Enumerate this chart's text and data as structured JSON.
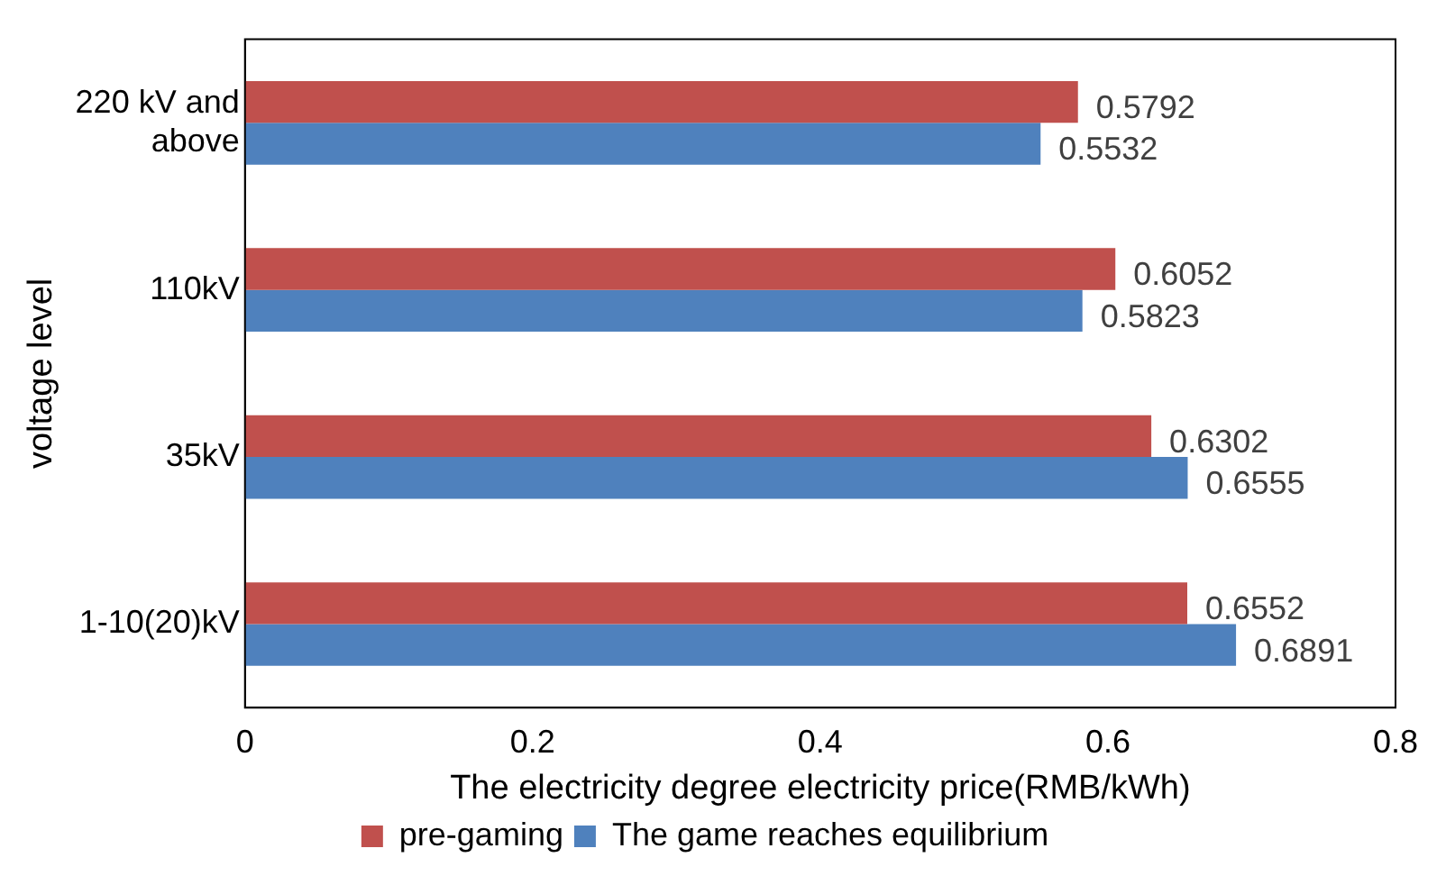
{
  "chart_data": {
    "type": "bar",
    "orientation": "horizontal",
    "xlabel": "The electricity degree electricity price(RMB/kWh)",
    "ylabel": "voltage level",
    "categories": [
      "220 kV and above",
      "110kV",
      "35kV",
      "1-10(20)kV"
    ],
    "series": [
      {
        "name": "pre-gaming",
        "color": "#c0504d",
        "values": [
          0.5792,
          0.6052,
          0.6302,
          0.6552
        ]
      },
      {
        "name": "The game reaches equilibrium",
        "color": "#4f81bd",
        "values": [
          0.5532,
          0.5823,
          0.6555,
          0.6891
        ]
      }
    ],
    "xlim": [
      0,
      0.8
    ],
    "xticks": [
      0,
      0.2,
      0.4,
      0.6,
      0.8
    ],
    "data_labels": true,
    "legend": "bottom",
    "grid": false
  }
}
